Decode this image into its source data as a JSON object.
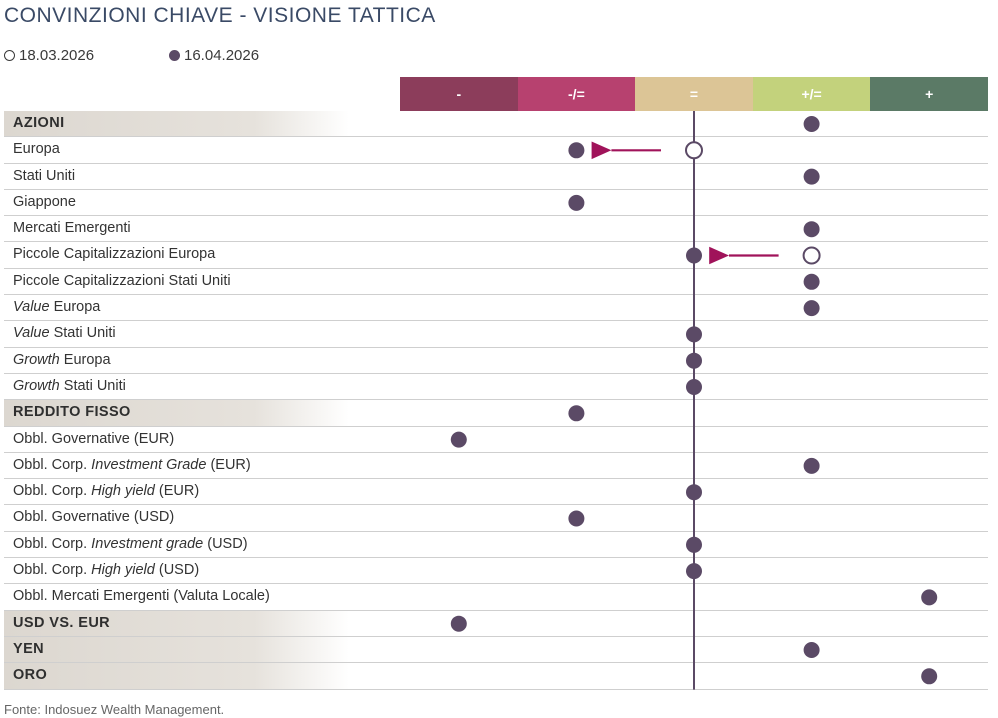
{
  "title": "CONVINZIONI CHIAVE - VISIONE TATTICA",
  "legend": {
    "previous": "18.03.2026",
    "current": "16.04.2026"
  },
  "scale": [
    {
      "label": "-",
      "color": "#8c3d5b"
    },
    {
      "label": "-/=",
      "color": "#b7416f"
    },
    {
      "label": "=",
      "color": "#dcc596"
    },
    {
      "label": "+/=",
      "color": "#c3d27c"
    },
    {
      "label": "+",
      "color": "#5b7a66"
    }
  ],
  "colors": {
    "marker": "#5b4a66",
    "arrow": "#a0135a",
    "axis": "#5b4a66"
  },
  "chart_data": {
    "type": "table",
    "categories": [
      "-",
      "-/=",
      "=",
      "+/=",
      "+"
    ],
    "rows": [
      {
        "label": "AZIONI",
        "header": true,
        "current": 4
      },
      {
        "label": "Europa",
        "current": 2,
        "previous": 3
      },
      {
        "label": "Stati Uniti",
        "current": 4
      },
      {
        "label": "Giappone",
        "current": 2
      },
      {
        "label": "Mercati Emergenti",
        "current": 4
      },
      {
        "label": "Piccole Capitalizzazioni Europa",
        "current": 3,
        "previous": 4
      },
      {
        "label": "Piccole Capitalizzazioni Stati Uniti",
        "current": 4
      },
      {
        "label": "Value Europa",
        "italic": "Value",
        "rest": " Europa",
        "current": 4
      },
      {
        "label": "Value Stati Uniti",
        "italic": "Value",
        "rest": " Stati Uniti",
        "current": 3
      },
      {
        "label": "Growth Europa",
        "italic": "Growth",
        "rest": " Europa",
        "current": 3
      },
      {
        "label": "Growth Stati Uniti",
        "italic": "Growth",
        "rest": " Stati Uniti",
        "current": 3
      },
      {
        "label": "REDDITO FISSO",
        "header": true,
        "current": 2
      },
      {
        "label": "Obbl. Governative (EUR)",
        "current": 1
      },
      {
        "label": "Obbl. Corp. Investment Grade (EUR)",
        "pre": "Obbl. Corp. ",
        "italic": "Investment Grade",
        "rest": " (EUR)",
        "current": 4
      },
      {
        "label": "Obbl. Corp. High yield (EUR)",
        "pre": "Obbl. Corp. ",
        "italic": "High yield",
        "rest": " (EUR)",
        "current": 3
      },
      {
        "label": "Obbl. Governative (USD)",
        "current": 2
      },
      {
        "label": "Obbl. Corp. Investment grade (USD)",
        "pre": "Obbl. Corp. ",
        "italic": "Investment grade",
        "rest": " (USD)",
        "current": 3
      },
      {
        "label": "Obbl. Corp. High yield (USD)",
        "pre": "Obbl. Corp. ",
        "italic": "High yield",
        "rest": " (USD)",
        "current": 3
      },
      {
        "label": "Obbl. Mercati Emergenti (Valuta Locale)",
        "current": 5
      },
      {
        "label": "USD VS. EUR",
        "header": true,
        "current": 1
      },
      {
        "label": "YEN",
        "header": true,
        "current": 4
      },
      {
        "label": "ORO",
        "header": true,
        "current": 5
      }
    ]
  },
  "source": "Fonte: Indosuez Wealth Management."
}
